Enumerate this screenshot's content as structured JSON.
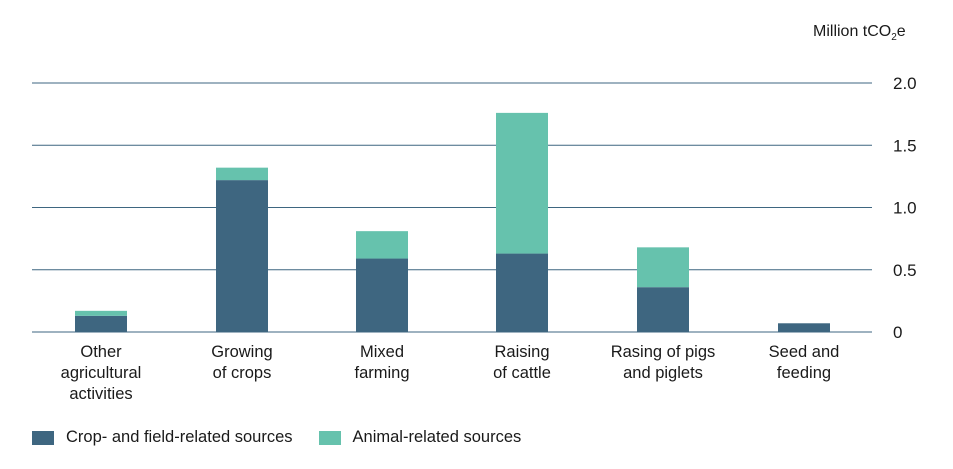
{
  "chart_data": {
    "type": "bar",
    "stacked": true,
    "unit_label": {
      "main": "Million tCO",
      "sub": "2",
      "tail": "e"
    },
    "categories": [
      [
        "Other",
        "agricultural",
        "activities"
      ],
      [
        "Growing",
        "of crops"
      ],
      [
        "Mixed",
        "farming"
      ],
      [
        "Raising",
        "of cattle"
      ],
      [
        "Rasing of pigs",
        "and piglets"
      ],
      [
        "Seed and",
        "feeding"
      ]
    ],
    "series": [
      {
        "name": "Crop- and field-related sources",
        "color": "#3e6680",
        "values": [
          0.13,
          1.22,
          0.59,
          0.63,
          0.36,
          0.07
        ]
      },
      {
        "name": "Animal-related sources",
        "color": "#66c2ad",
        "values": [
          0.04,
          0.1,
          0.22,
          1.13,
          0.32,
          0.0
        ]
      }
    ],
    "ylim": [
      0,
      2.0
    ],
    "yticks": [
      0,
      0.5,
      1.0,
      1.5,
      2.0
    ],
    "ytick_labels": [
      "0",
      "0.5",
      "1.0",
      "1.5",
      "2.0"
    ],
    "grid": true,
    "legend_position": "bottom-left"
  }
}
